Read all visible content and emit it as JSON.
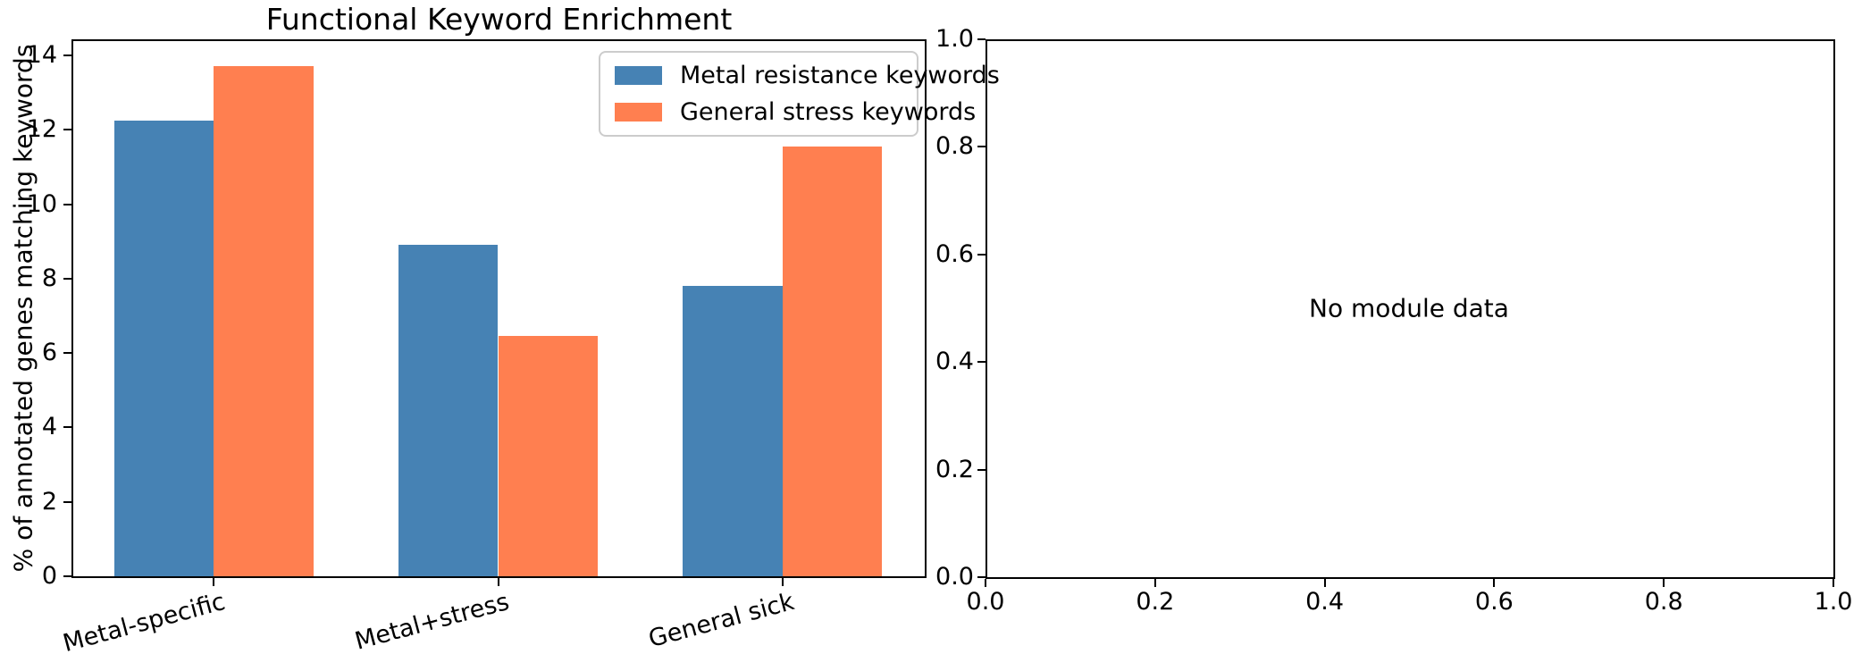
{
  "figure": {
    "background": "#ffffff",
    "spine_color": "#000000"
  },
  "chart_data": [
    {
      "type": "bar",
      "title": "Functional Keyword Enrichment",
      "categories": [
        "Metal-specific",
        "Metal+stress",
        "General sick"
      ],
      "series": [
        {
          "name": "Metal resistance keywords",
          "color": "#4682B4",
          "values": [
            12.25,
            8.9,
            7.8
          ]
        },
        {
          "name": "General stress keywords",
          "color": "#FF7F50",
          "values": [
            13.7,
            6.45,
            11.55
          ]
        }
      ],
      "xlabel": "",
      "ylabel": "% of annotated genes matching keywords",
      "ylim": [
        0,
        14.43
      ],
      "yticks": [
        0,
        2,
        4,
        6,
        8,
        10,
        12,
        14
      ],
      "xlim": [
        -0.5,
        2.5
      ],
      "bar_width": 0.35,
      "xtick_rotation": 15,
      "legend_position": "upper right",
      "grid": false
    },
    {
      "type": "empty",
      "annotation": "No module data",
      "xlim": [
        0,
        1
      ],
      "ylim": [
        0,
        1
      ],
      "xticks": [
        "0.0",
        "0.2",
        "0.4",
        "0.6",
        "0.8",
        "1.0"
      ],
      "yticks": [
        "0.0",
        "0.2",
        "0.4",
        "0.6",
        "0.8",
        "1.0"
      ],
      "grid": false
    }
  ]
}
